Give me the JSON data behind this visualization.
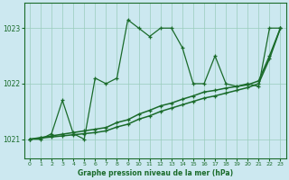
{
  "title": "Graphe pression niveau de la mer (hPa)",
  "bg_color": "#cce8f0",
  "plot_bg_color": "#cce8f0",
  "grid_color": "#99ccbb",
  "line_color": "#1a6b2a",
  "xlim": [
    -0.5,
    23.5
  ],
  "ylim": [
    1020.65,
    1023.45
  ],
  "yticks": [
    1021,
    1022,
    1023
  ],
  "xticks": [
    0,
    1,
    2,
    3,
    4,
    5,
    6,
    7,
    8,
    9,
    10,
    11,
    12,
    13,
    14,
    15,
    16,
    17,
    18,
    19,
    20,
    21,
    22,
    23
  ],
  "series1_x": [
    0,
    1,
    2,
    3,
    4,
    5,
    6,
    7,
    8,
    9,
    10,
    11,
    12,
    13,
    14,
    15,
    16,
    17,
    18,
    19,
    20,
    21,
    22,
    23
  ],
  "series1_y": [
    1021.0,
    1021.0,
    1021.1,
    1021.7,
    1021.1,
    1021.0,
    1022.1,
    1022.0,
    1022.1,
    1023.15,
    1023.0,
    1022.85,
    1023.0,
    1023.0,
    1022.65,
    1022.0,
    1022.0,
    1022.5,
    1022.0,
    1021.95,
    1022.0,
    1021.95,
    1023.0,
    1023.0
  ],
  "series2_x": [
    0,
    1,
    2,
    3,
    4,
    5,
    6,
    7,
    8,
    9,
    10,
    11,
    12,
    13,
    14,
    15,
    16,
    17,
    18,
    19,
    20,
    21,
    22,
    23
  ],
  "series2_y": [
    1021.0,
    1021.03,
    1021.06,
    1021.09,
    1021.12,
    1021.15,
    1021.18,
    1021.21,
    1021.3,
    1021.35,
    1021.45,
    1021.52,
    1021.6,
    1021.65,
    1021.72,
    1021.78,
    1021.85,
    1021.88,
    1021.92,
    1021.95,
    1021.98,
    1022.05,
    1022.5,
    1023.0
  ],
  "series3_x": [
    0,
    1,
    2,
    3,
    4,
    5,
    6,
    7,
    8,
    9,
    10,
    11,
    12,
    13,
    14,
    15,
    16,
    17,
    18,
    19,
    20,
    21,
    22,
    23
  ],
  "series3_y": [
    1021.0,
    1021.02,
    1021.04,
    1021.06,
    1021.08,
    1021.1,
    1021.12,
    1021.15,
    1021.22,
    1021.27,
    1021.36,
    1021.42,
    1021.5,
    1021.56,
    1021.62,
    1021.68,
    1021.74,
    1021.78,
    1021.83,
    1021.88,
    1021.93,
    1022.0,
    1022.45,
    1023.0
  ]
}
